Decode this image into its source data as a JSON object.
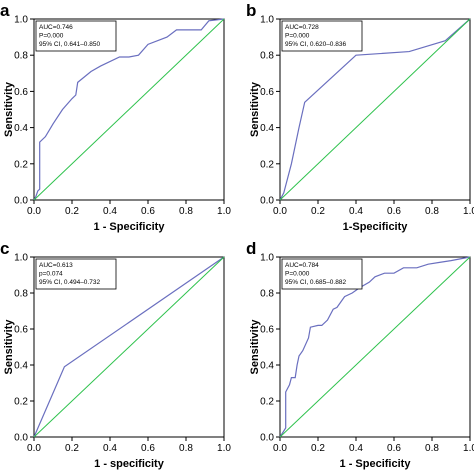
{
  "colors": {
    "roc": "#6a6fbf",
    "reference": "#2ec24d"
  },
  "chart_data": [
    {
      "type": "line",
      "panel": "a",
      "xlabel": "1 - Specificity",
      "ylabel": "Sensitivity",
      "xlim": [
        0,
        1
      ],
      "ylim": [
        0,
        1
      ],
      "xticks": [
        "0.0",
        "0.2",
        "0.4",
        "0.6",
        "0.8",
        "1.0"
      ],
      "yticks": [
        "0.0",
        "0.2",
        "0.4",
        "0.6",
        "0.8",
        "1.0"
      ],
      "annotation": [
        "AUC=0.746",
        "P=0.000",
        "95% CI, 0.641–0.850"
      ],
      "series": [
        {
          "x": [
            0,
            0.01,
            0.02,
            0.03,
            0.03,
            0.06,
            0.1,
            0.15,
            0.2,
            0.22,
            0.23,
            0.3,
            0.35,
            0.45,
            0.5,
            0.55,
            0.6,
            0.7,
            0.75,
            0.8,
            0.88,
            0.92,
            1
          ],
          "y": [
            0,
            0.02,
            0.05,
            0.06,
            0.32,
            0.35,
            0.42,
            0.5,
            0.56,
            0.58,
            0.65,
            0.71,
            0.74,
            0.79,
            0.79,
            0.8,
            0.86,
            0.9,
            0.94,
            0.94,
            0.94,
            0.99,
            1
          ]
        },
        {
          "x": [
            0,
            1
          ],
          "y": [
            0,
            1
          ]
        }
      ]
    },
    {
      "type": "line",
      "panel": "b",
      "xlabel": "1-Specificity",
      "ylabel": "Sensitivity",
      "xlim": [
        0,
        1
      ],
      "ylim": [
        0,
        1
      ],
      "xticks": [
        "0.0",
        "0.2",
        "0.4",
        "0.6",
        "0.8",
        "1.0"
      ],
      "yticks": [
        "0.0",
        "0.2",
        "0.4",
        "0.6",
        "0.8",
        "1.0"
      ],
      "annotation": [
        "AUC=0.728",
        "P=0.000",
        "95% CI, 0.620–0.836"
      ],
      "series": [
        {
          "x": [
            0,
            0.02,
            0.06,
            0.1,
            0.13,
            0.4,
            0.68,
            0.87,
            1
          ],
          "y": [
            0,
            0.04,
            0.2,
            0.4,
            0.54,
            0.8,
            0.82,
            0.88,
            1
          ]
        },
        {
          "x": [
            0,
            1
          ],
          "y": [
            0,
            1
          ]
        }
      ]
    },
    {
      "type": "line",
      "panel": "c",
      "xlabel": "1 - specificity",
      "ylabel": "Sensitivity",
      "xlim": [
        0,
        1
      ],
      "ylim": [
        0,
        1
      ],
      "xticks": [
        "0.0",
        "0.2",
        "0.4",
        "0.6",
        "0.8",
        "1.0"
      ],
      "yticks": [
        "0.0",
        "0.2",
        "0.4",
        "0.6",
        "0.8",
        "1.0"
      ],
      "annotation": [
        "AUC=0.613",
        "p=0.074",
        "95% CI, 0.494–0.732"
      ],
      "series": [
        {
          "x": [
            0,
            0.16,
            1
          ],
          "y": [
            0,
            0.39,
            1
          ]
        },
        {
          "x": [
            0,
            1
          ],
          "y": [
            0,
            1
          ]
        }
      ]
    },
    {
      "type": "line",
      "panel": "d",
      "xlabel": "1 - Specificity",
      "ylabel": "Sensitivity",
      "xlim": [
        0,
        1
      ],
      "ylim": [
        0,
        1
      ],
      "xticks": [
        "0.0",
        "0.2",
        "0.4",
        "0.6",
        "0.8",
        "1.0"
      ],
      "yticks": [
        "0.0",
        "0.2",
        "0.4",
        "0.6",
        "0.8",
        "1.0"
      ],
      "annotation": [
        "AUC=0.784",
        "P=0.000",
        "95% CI, 0.685–0.882"
      ],
      "series": [
        {
          "x": [
            0,
            0.03,
            0.03,
            0.05,
            0.06,
            0.08,
            0.09,
            0.1,
            0.12,
            0.15,
            0.16,
            0.2,
            0.22,
            0.25,
            0.28,
            0.3,
            0.34,
            0.38,
            0.42,
            0.47,
            0.5,
            0.55,
            0.6,
            0.65,
            0.72,
            0.78,
            0.84,
            0.9,
            1
          ],
          "y": [
            0,
            0.05,
            0.25,
            0.29,
            0.33,
            0.33,
            0.4,
            0.45,
            0.48,
            0.55,
            0.61,
            0.62,
            0.62,
            0.65,
            0.71,
            0.72,
            0.78,
            0.8,
            0.83,
            0.86,
            0.89,
            0.91,
            0.91,
            0.94,
            0.94,
            0.96,
            0.97,
            0.98,
            1
          ]
        },
        {
          "x": [
            0,
            1
          ],
          "y": [
            0,
            1
          ]
        }
      ]
    }
  ]
}
